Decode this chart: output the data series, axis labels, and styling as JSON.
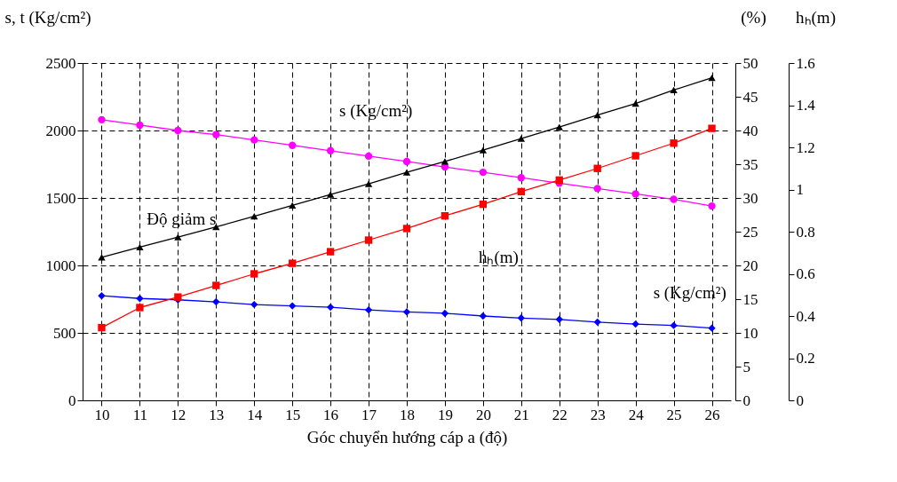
{
  "chart_data": {
    "type": "line",
    "xlabel": "Góc chuyển hướng cáp a (độ)",
    "ylabel": "s, t (Kg/cm²)",
    "y2label": "(%)",
    "y3label": "hₕ(m)",
    "categories": [
      "10",
      "11",
      "12",
      "13",
      "14",
      "15",
      "16",
      "17",
      "18",
      "19",
      "20",
      "21",
      "22",
      "23",
      "24",
      "25",
      "26"
    ],
    "series": [
      {
        "name": "s (Kg/cm²)",
        "color": "#ff00ff",
        "marker": "circle",
        "values": [
          2080,
          2040,
          2000,
          1970,
          1930,
          1890,
          1850,
          1810,
          1770,
          1730,
          1690,
          1650,
          1610,
          1570,
          1530,
          1490,
          1440
        ]
      },
      {
        "name": "s (Kg/cm²)",
        "color": "#0000ff",
        "marker": "diamond",
        "values": [
          775,
          755,
          745,
          730,
          710,
          700,
          690,
          670,
          655,
          645,
          625,
          610,
          600,
          580,
          565,
          555,
          535
        ]
      },
      {
        "name": "Độ giảm s",
        "color": "#000000",
        "marker": "triangle",
        "axis": "y2",
        "values": [
          21.2,
          22.7,
          24.2,
          25.7,
          27.3,
          28.9,
          30.5,
          32.1,
          33.8,
          35.4,
          37.1,
          38.8,
          40.5,
          42.3,
          44.0,
          46.0,
          47.8
        ]
      },
      {
        "name": "hₕ(m)",
        "color": "#ff0000",
        "marker": "square",
        "axis": "y3",
        "values": [
          0.345,
          0.44,
          0.49,
          0.545,
          0.6,
          0.65,
          0.705,
          0.76,
          0.815,
          0.875,
          0.93,
          0.99,
          1.045,
          1.1,
          1.16,
          1.22,
          1.29
        ]
      }
    ],
    "ylim": [
      0,
      2500
    ],
    "yticks": [
      0,
      500,
      1000,
      1500,
      2000,
      2500
    ],
    "y2lim": [
      0,
      50
    ],
    "y2ticks": [
      0,
      5,
      10,
      15,
      20,
      25,
      30,
      35,
      40,
      45,
      50
    ],
    "y3lim": [
      0,
      1.6
    ],
    "y3ticks": [
      0,
      0.2,
      0.4,
      0.6,
      0.8,
      1,
      1.2,
      1.4,
      1.6
    ],
    "grid": true,
    "line_style": "solid"
  }
}
